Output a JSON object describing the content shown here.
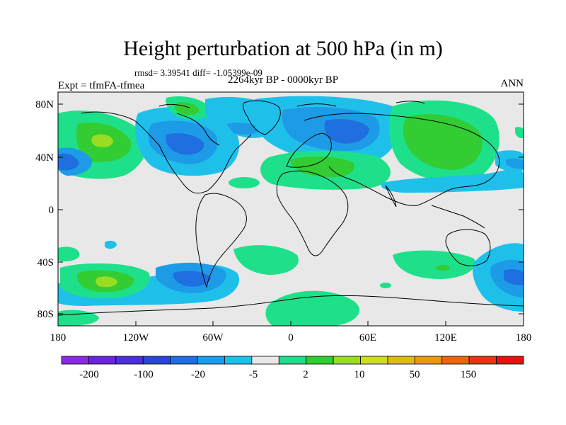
{
  "title": "Height perturbation at 500 hPa (in m)",
  "stats": "rmsd= 3.39541 diff= -1.05399e-09",
  "period": "2264kyr BP - 0000kyr BP",
  "experiment": "Expt = tfmFA-tfmea",
  "season": "ANN",
  "map": {
    "lat_ticks": [
      "80N",
      "40N",
      "0",
      "40S",
      "80S"
    ],
    "lon_ticks": [
      "180",
      "120W",
      "60W",
      "0",
      "60E",
      "120E",
      "180"
    ]
  },
  "colorbar": {
    "labels": [
      "-200",
      "-100",
      "-20",
      "-5",
      "2",
      "10",
      "50",
      "150"
    ],
    "colors": [
      "#8a2be2",
      "#6a26d9",
      "#4b2fd8",
      "#2a46d8",
      "#1f6fe0",
      "#1e9be6",
      "#1ec0ea",
      "#e8e8e8",
      "#1ee08a",
      "#33cc33",
      "#99dd22",
      "#ccdd22",
      "#ddbb11",
      "#e89911",
      "#e86611",
      "#e83311",
      "#e81111"
    ]
  },
  "fill_colors": {
    "neutral": "#e8e8e8",
    "lightblue": "#1ec0ea",
    "blue": "#1e9be6",
    "darkblue": "#1f6fe0",
    "teal": "#1ee08a",
    "green": "#33cc33",
    "yellowgreen": "#99dd22"
  }
}
